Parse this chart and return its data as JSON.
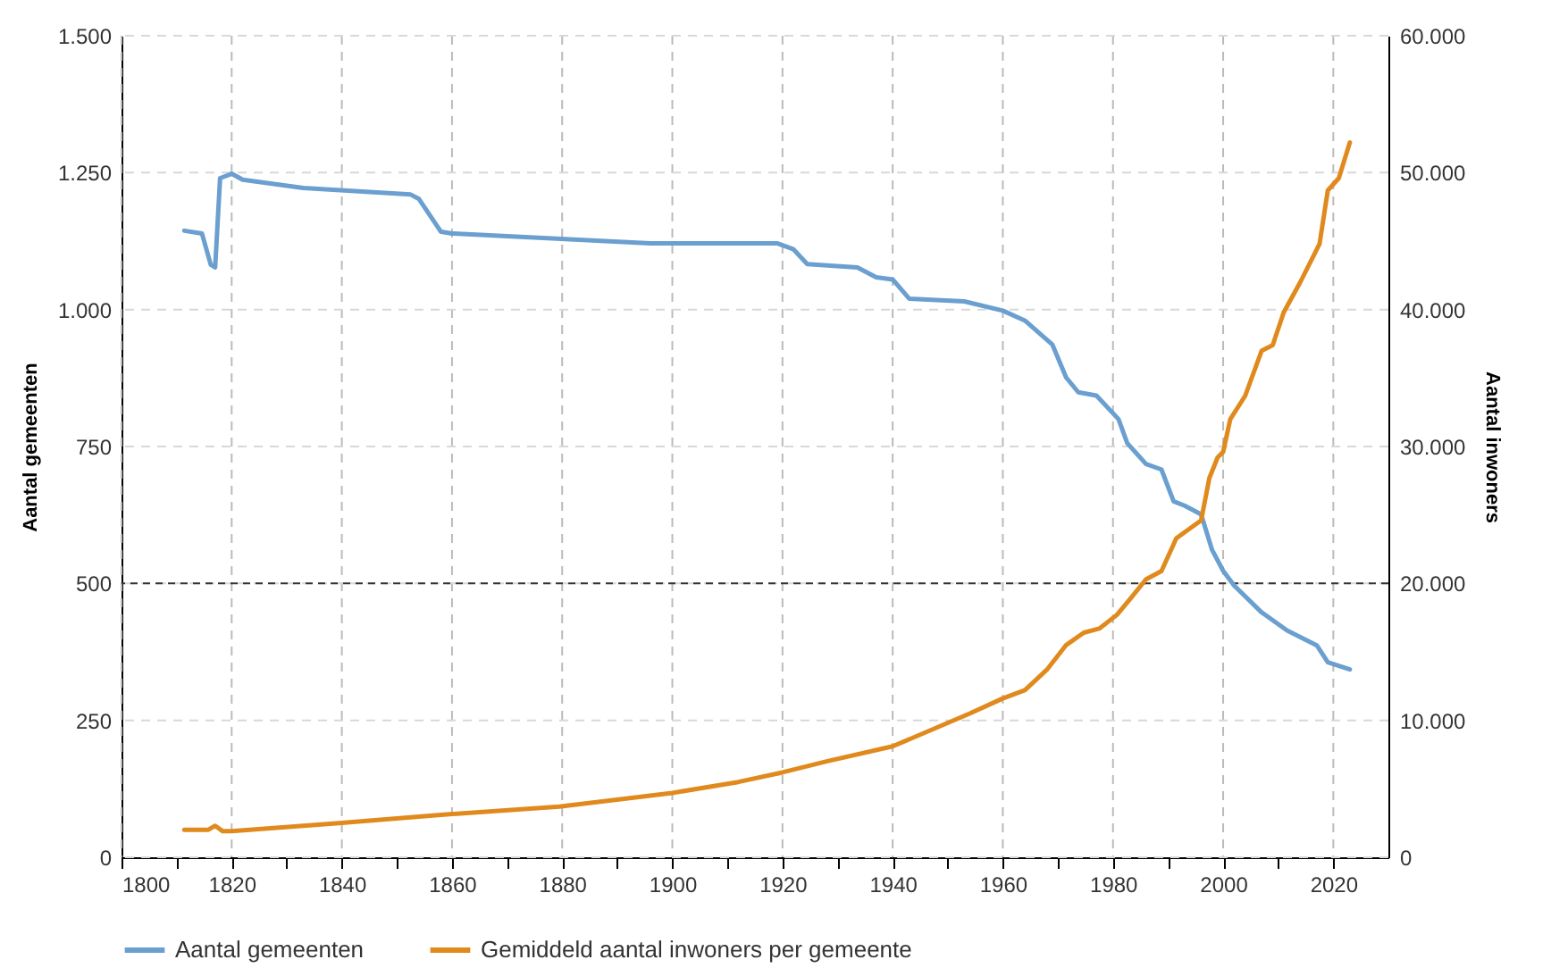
{
  "chart_data": {
    "type": "line",
    "xlabel": null,
    "ylabel": "Aantal gemeenten",
    "y2label": "Aantal inwoners",
    "xlim": [
      1800,
      2030
    ],
    "xticks": [
      1800,
      {
        "value": 1810,
        "label": null
      },
      1820,
      {
        "value": 1830,
        "label": null
      },
      1840,
      {
        "value": 1850,
        "label": null
      },
      1860,
      {
        "value": 1870,
        "label": null
      },
      1880,
      {
        "value": 1890,
        "label": null
      },
      1900,
      {
        "value": 1910,
        "label": null
      },
      1920,
      {
        "value": 1930,
        "label": null
      },
      1940,
      {
        "value": 1950,
        "label": null
      },
      1960,
      {
        "value": 1970,
        "label": null
      },
      1980,
      {
        "value": 1990,
        "label": null
      },
      2000,
      {
        "value": 2010,
        "label": null
      },
      2020
    ],
    "ylim": [
      0,
      1500
    ],
    "yticks": [
      0,
      250,
      500,
      750,
      {
        "value": 1000,
        "label": "1.000"
      },
      {
        "value": 1250,
        "label": "1.250"
      },
      {
        "value": 1500,
        "label": "1.500"
      }
    ],
    "y2lim": [
      0,
      60000
    ],
    "y2ticks": [
      0,
      {
        "value": 10000,
        "label": "10.000"
      },
      {
        "value": 20000,
        "label": "20.000"
      },
      {
        "value": 30000,
        "label": "30.000"
      },
      {
        "value": 40000,
        "label": "40.000"
      },
      {
        "value": 50000,
        "label": "50.000"
      },
      {
        "value": 60000,
        "label": "60.000"
      }
    ],
    "grid": true,
    "legend": "bottom",
    "ref_lines": [
      {
        "axis": "y",
        "value": 500,
        "color": "#333333",
        "line_style": "dashed"
      }
    ],
    "series": [
      {
        "name": "Aantal gemeenten",
        "color": "#6a9fcf",
        "x": [
          1811.4,
          1814.6,
          1816.2,
          1817,
          1817.9,
          1820,
          1822,
          1833,
          1852.5,
          1854,
          1858,
          1860,
          1896,
          1919,
          1922,
          1924.5,
          1933.6,
          1937,
          1940,
          1943,
          1953,
          1960,
          1964,
          1969,
          1971.5,
          1973.7,
          1977,
          1981,
          1982.6,
          1986,
          1988.8,
          1991,
          1993,
          1996,
          1998,
          2000,
          2002,
          2007,
          2011.6,
          2017,
          2019,
          2023
        ],
        "values": [
          1144,
          1139,
          1082,
          1077,
          1240,
          1248,
          1237,
          1222,
          1210,
          1202,
          1142,
          1139,
          1121,
          1121,
          1110,
          1083,
          1077,
          1059,
          1055,
          1020,
          1015,
          998,
          980,
          936,
          876,
          849,
          843,
          800,
          756,
          718,
          708,
          650,
          642,
          626,
          561,
          523,
          496,
          447,
          414,
          387,
          356,
          343
        ]
      },
      {
        "name": "Gemiddeld aantal inwoners per gemeente",
        "color": "#e08a1e",
        "axis": "y2",
        "x": [
          1811.4,
          1815.7,
          1817,
          1818.4,
          1820,
          1839.5,
          1858,
          1879.5,
          1900,
          1912,
          1920,
          1928,
          1940,
          1954,
          1960,
          1964,
          1968,
          1971.5,
          1974.7,
          1977.5,
          1980.7,
          1983.4,
          1986,
          1988.8,
          1991.5,
          1996,
          1997.5,
          1999,
          2000,
          2001.3,
          2004,
          2007,
          2009,
          2011,
          2014,
          2017.5,
          2019,
          2021,
          2023
        ],
        "values": [
          2000,
          2000,
          2300,
          1900,
          1900,
          2500,
          3100,
          3700,
          4700,
          5500,
          6200,
          7000,
          8100,
          10500,
          11600,
          12200,
          13700,
          15500,
          16400,
          16700,
          17700,
          19000,
          20300,
          20900,
          23300,
          24600,
          27700,
          29200,
          29600,
          32000,
          33700,
          37000,
          37400,
          39800,
          42000,
          44800,
          48700,
          49600,
          52200
        ]
      }
    ]
  }
}
